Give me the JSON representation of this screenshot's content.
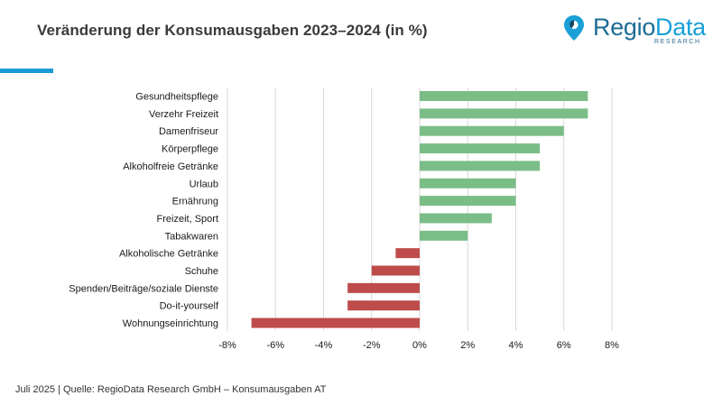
{
  "header": {
    "title": "Veränderung der Konsumausgaben 2023–2024 (in %)"
  },
  "logo": {
    "brand_part1": "Regio",
    "brand_part2": "Data",
    "subtitle": "RESEARCH",
    "icon": "location-pin-icon",
    "colors": {
      "primary": "#1b6c95",
      "secondary": "#1aa0d7",
      "pin_dark": "#17435f"
    }
  },
  "accent_color": "#1b9bd3",
  "chart_data": {
    "type": "bar",
    "orientation": "horizontal",
    "title": "",
    "xlabel": "",
    "ylabel": "",
    "categories": [
      "Gesundheitspflege",
      "Verzehr Freizeit",
      "Damenfriseur",
      "Körperpflege",
      "Alkoholfreie Getränke",
      "Urlaub",
      "Ernährung",
      "Freizeit, Sport",
      "Tabakwaren",
      "Alkoholische Getränke",
      "Schuhe",
      "Spenden/Beiträge/soziale Dienste",
      "Do-it-yourself",
      "Wohnungseinrichtung"
    ],
    "values": [
      7,
      7,
      6,
      5,
      5,
      4,
      4,
      3,
      2,
      -1,
      -2,
      -3,
      -3,
      -7
    ],
    "unit": "%",
    "xlim": [
      -8,
      8
    ],
    "ticks": [
      -8,
      -6,
      -4,
      -2,
      0,
      2,
      4,
      6,
      8
    ],
    "tick_labels": [
      "-8%",
      "-6%",
      "-4%",
      "-2%",
      "0%",
      "2%",
      "4%",
      "6%",
      "8%"
    ],
    "grid": "vertical",
    "legend": "none",
    "colors": {
      "positive": "#7bbd87",
      "negative": "#bd4c4a",
      "grid": "#d9d9d9"
    }
  },
  "footer": {
    "source": "Juli 2025 | Quelle: RegioData Research GmbH – Konsumausgaben AT"
  }
}
